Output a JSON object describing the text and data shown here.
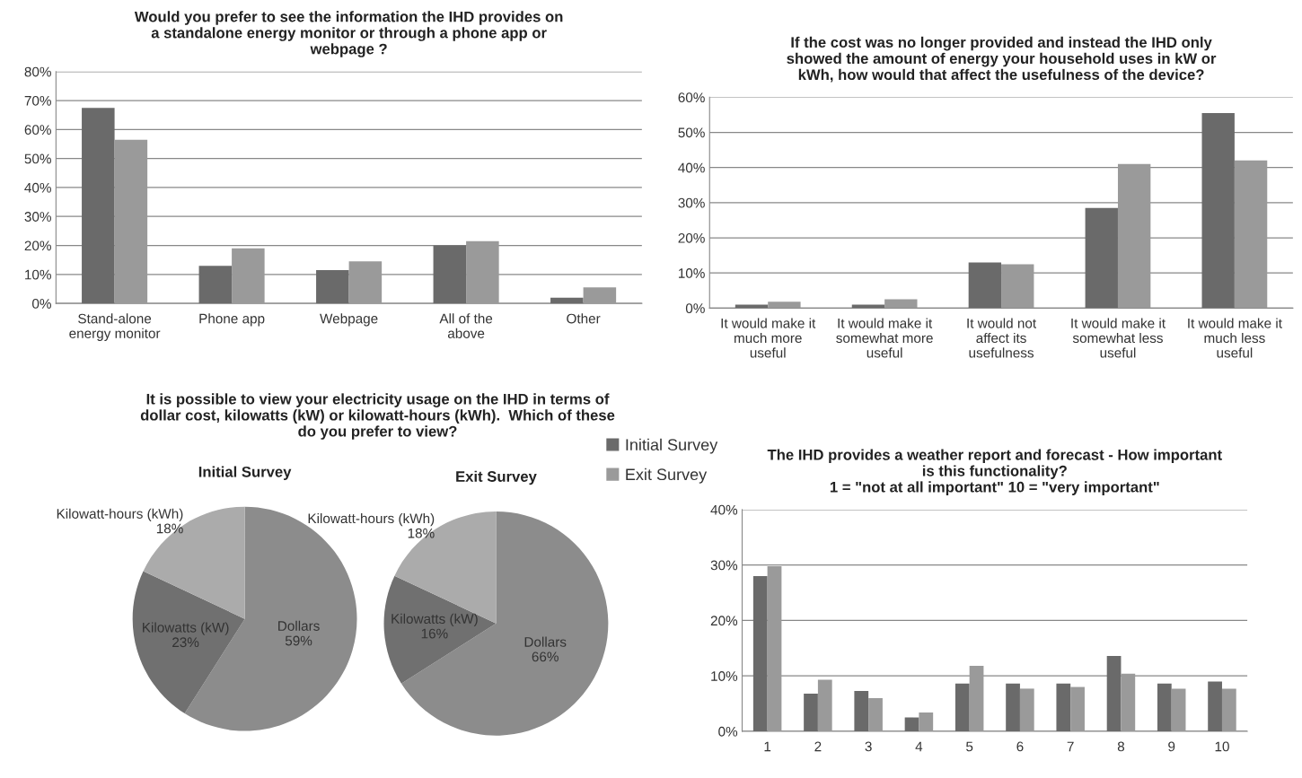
{
  "chart_data": [
    {
      "type": "bar",
      "title": "Would you prefer to see the information the IHD provides on\na standalone energy monitor or through a phone app or\nwebpage ?",
      "categories": [
        "Stand-alone\nenergy monitor",
        "Phone app",
        "Webpage",
        "All of the\nabove",
        "Other"
      ],
      "series": [
        {
          "name": "Initial Survey",
          "color": "#6a6a6a",
          "values": [
            67.5,
            13,
            11.5,
            20,
            2
          ]
        },
        {
          "name": "Exit Survey",
          "color": "#9a9a9a",
          "values": [
            56.5,
            19,
            14.5,
            21.5,
            5.5
          ]
        }
      ],
      "ylim": [
        0,
        80
      ],
      "yticks": [
        {
          "value": 0,
          "label": "0%"
        },
        {
          "value": 10,
          "label": "10%"
        },
        {
          "value": 20,
          "label": "20%"
        },
        {
          "value": 30,
          "label": "30%"
        },
        {
          "value": 40,
          "label": "40%"
        },
        {
          "value": 50,
          "label": "50%"
        },
        {
          "value": 60,
          "label": "60%"
        },
        {
          "value": 70,
          "label": "70%"
        },
        {
          "value": 80,
          "label": "80%"
        }
      ],
      "grid": "y",
      "legend": "bottom right"
    },
    {
      "type": "bar",
      "title": "If the cost was no longer provided and instead the IHD only\nshowed the amount of energy your household uses in kW or\nkWh, how would that affect the usefulness of the device?",
      "categories": [
        "It would make it\nmuch more\nuseful",
        "It would make it\nsomewhat more\nuseful",
        "It would not\naffect its\nusefulness",
        "It would make it\nsomewhat less\nuseful",
        "It would make it\nmuch less\nuseful"
      ],
      "series": [
        {
          "color": "#6a6a6a",
          "values": [
            1,
            1,
            13,
            28.5,
            55.5
          ]
        },
        {
          "color": "#9a9a9a",
          "values": [
            1.8,
            2.5,
            12.5,
            41,
            42
          ]
        }
      ],
      "ylim": [
        0,
        60
      ],
      "yticks": [
        {
          "value": 0,
          "label": "0%"
        },
        {
          "value": 10,
          "label": "10%"
        },
        {
          "value": 20,
          "label": "20%"
        },
        {
          "value": 30,
          "label": "30%"
        },
        {
          "value": 40,
          "label": "40%"
        },
        {
          "value": 50,
          "label": "50%"
        },
        {
          "value": 60,
          "label": "60%"
        }
      ],
      "grid": "y"
    },
    {
      "type": "pie",
      "title": "It is possible to view your electricity usage on the IHD in terms of\ndollar cost, kilowatts (kW) or kilowatt-hours (kWh).  Which of these\ndo you prefer to view?",
      "subtitle": "Initial Survey",
      "categories": [
        "Dollars",
        "Kilowatts (kW)",
        "Kilowatt-hours (kWh)"
      ],
      "values": [
        59,
        23,
        18
      ],
      "colors": [
        "#8c8c8c",
        "#707070",
        "#ababab"
      ],
      "value_labels": [
        "59%",
        "23%",
        "18%"
      ]
    },
    {
      "type": "pie",
      "subtitle": "Exit Survey",
      "categories": [
        "Dollars",
        "Kilowatts (kW)",
        "Kilowatt-hours (kWh)"
      ],
      "values": [
        66,
        16,
        18
      ],
      "colors": [
        "#8c8c8c",
        "#707070",
        "#ababab"
      ],
      "value_labels": [
        "66%",
        "16%",
        "18%"
      ]
    },
    {
      "type": "bar",
      "title": "The IHD provides a weather report and forecast - How important\nis this functionality?\n1 = \"not at all important\" 10 = \"very important\"",
      "categories": [
        "1",
        "2",
        "3",
        "4",
        "5",
        "6",
        "7",
        "8",
        "9",
        "10"
      ],
      "series": [
        {
          "color": "#6a6a6a",
          "values": [
            28,
            6.8,
            7.3,
            2.5,
            8.6,
            8.6,
            8.6,
            13.6,
            8.6,
            9.0
          ]
        },
        {
          "color": "#9a9a9a",
          "values": [
            29.8,
            9.3,
            6,
            3.4,
            11.8,
            7.7,
            8,
            10.4,
            7.7,
            7.7
          ]
        }
      ],
      "ylim": [
        0,
        40
      ],
      "yticks": [
        {
          "value": 0,
          "label": "0%"
        },
        {
          "value": 10,
          "label": "10%"
        },
        {
          "value": 20,
          "label": "20%"
        },
        {
          "value": 30,
          "label": "30%"
        },
        {
          "value": 40,
          "label": "40%"
        }
      ],
      "grid": "y"
    }
  ]
}
